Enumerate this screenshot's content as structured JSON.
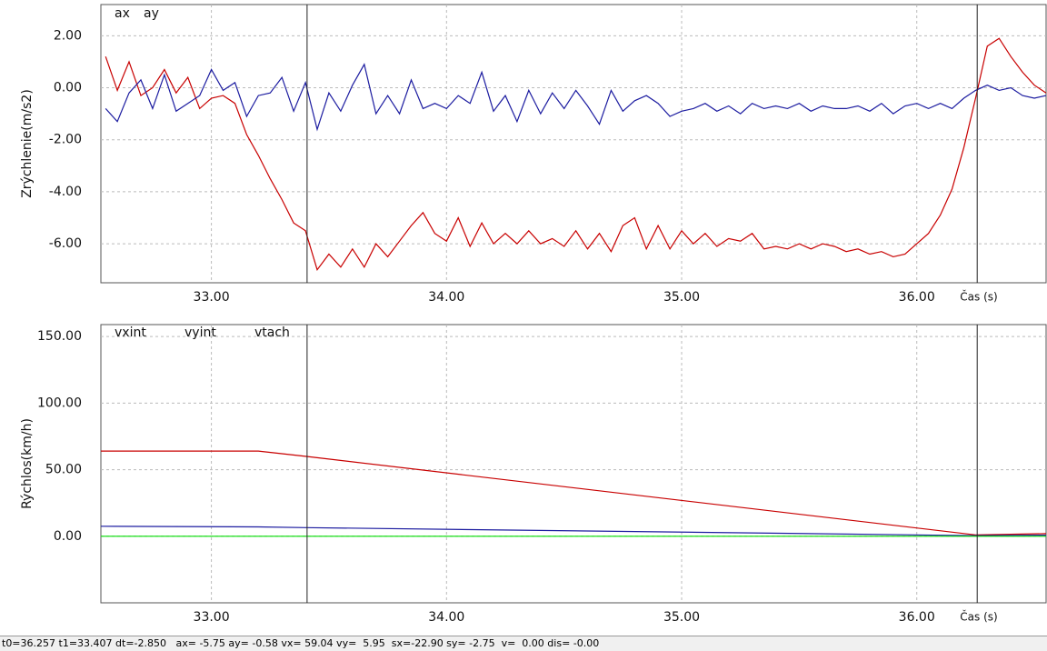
{
  "chart_data": [
    {
      "type": "line",
      "ylabel": "Zrýchlenie(m/s2)",
      "xlabel": "Čas (s)",
      "xlim": [
        32.53,
        36.55
      ],
      "ylim": [
        -7.5,
        3.2
      ],
      "xticks": [
        {
          "value": 33,
          "label": "33.00"
        },
        {
          "value": 34,
          "label": "34.00"
        },
        {
          "value": 35,
          "label": "35.00"
        },
        {
          "value": 36,
          "label": "36.00"
        }
      ],
      "yticks": [
        {
          "value": 2,
          "label": "2.00"
        },
        {
          "value": 0,
          "label": "0.00"
        },
        {
          "value": -2,
          "label": "-2.00"
        },
        {
          "value": -4,
          "label": "-4.00"
        },
        {
          "value": -6,
          "label": "-6.00"
        }
      ],
      "grid": true,
      "cursors": [
        33.407,
        36.257
      ],
      "x": [
        32.55,
        32.6,
        32.65,
        32.7,
        32.75,
        32.8,
        32.85,
        32.9,
        32.95,
        33.0,
        33.05,
        33.1,
        33.15,
        33.2,
        33.25,
        33.3,
        33.35,
        33.4,
        33.45,
        33.5,
        33.55,
        33.6,
        33.65,
        33.7,
        33.75,
        33.8,
        33.85,
        33.9,
        33.95,
        34.0,
        34.05,
        34.1,
        34.15,
        34.2,
        34.25,
        34.3,
        34.35,
        34.4,
        34.45,
        34.5,
        34.55,
        34.6,
        34.65,
        34.7,
        34.75,
        34.8,
        34.85,
        34.9,
        34.95,
        35.0,
        35.05,
        35.1,
        35.15,
        35.2,
        35.25,
        35.3,
        35.35,
        35.4,
        35.45,
        35.5,
        35.55,
        35.6,
        35.65,
        35.7,
        35.75,
        35.8,
        35.85,
        35.9,
        35.95,
        36.0,
        36.05,
        36.1,
        36.15,
        36.2,
        36.25,
        36.3,
        36.35,
        36.4,
        36.45,
        36.5,
        36.55
      ],
      "series": [
        {
          "name": "ax",
          "color": "#c80000",
          "values": [
            1.2,
            -0.1,
            1.0,
            -0.3,
            0.0,
            0.7,
            -0.2,
            0.4,
            -0.8,
            -0.4,
            -0.3,
            -0.6,
            -1.8,
            -2.6,
            -3.5,
            -4.3,
            -5.2,
            -5.5,
            -7.0,
            -6.4,
            -6.9,
            -6.2,
            -6.9,
            -6.0,
            -6.5,
            -5.9,
            -5.3,
            -4.8,
            -5.6,
            -5.9,
            -5.0,
            -6.1,
            -5.2,
            -6.0,
            -5.6,
            -6.0,
            -5.5,
            -6.0,
            -5.8,
            -6.1,
            -5.5,
            -6.2,
            -5.6,
            -6.3,
            -5.3,
            -5.0,
            -6.2,
            -5.3,
            -6.2,
            -5.5,
            -6.0,
            -5.6,
            -6.1,
            -5.8,
            -5.9,
            -5.6,
            -6.2,
            -6.1,
            -6.2,
            -6.0,
            -6.2,
            -6.0,
            -6.1,
            -6.3,
            -6.2,
            -6.4,
            -6.3,
            -6.5,
            -6.4,
            -6.0,
            -5.6,
            -4.9,
            -3.9,
            -2.3,
            -0.4,
            1.6,
            1.9,
            1.2,
            0.6,
            0.1,
            -0.2
          ]
        },
        {
          "name": "ay",
          "color": "#1c1ca0",
          "values": [
            -0.8,
            -1.3,
            -0.2,
            0.3,
            -0.8,
            0.5,
            -0.9,
            -0.6,
            -0.3,
            0.7,
            -0.1,
            0.2,
            -1.1,
            -0.3,
            -0.2,
            0.4,
            -0.9,
            0.2,
            -1.6,
            -0.2,
            -0.9,
            0.1,
            0.9,
            -1.0,
            -0.3,
            -1.0,
            0.3,
            -0.8,
            -0.6,
            -0.8,
            -0.3,
            -0.6,
            0.6,
            -0.9,
            -0.3,
            -1.3,
            -0.1,
            -1.0,
            -0.2,
            -0.8,
            -0.1,
            -0.7,
            -1.4,
            -0.1,
            -0.9,
            -0.5,
            -0.3,
            -0.6,
            -1.1,
            -0.9,
            -0.8,
            -0.6,
            -0.9,
            -0.7,
            -1.0,
            -0.6,
            -0.8,
            -0.7,
            -0.8,
            -0.6,
            -0.9,
            -0.7,
            -0.8,
            -0.8,
            -0.7,
            -0.9,
            -0.6,
            -1.0,
            -0.7,
            -0.6,
            -0.8,
            -0.6,
            -0.8,
            -0.4,
            -0.1,
            0.1,
            -0.1,
            0.0,
            -0.3,
            -0.4,
            -0.3
          ]
        }
      ]
    },
    {
      "type": "line",
      "ylabel": "Rýchlos(km/h)",
      "xlabel": "Čas (s)",
      "xlim": [
        32.53,
        36.55
      ],
      "ylim": [
        -50,
        159
      ],
      "xticks": [
        {
          "value": 33,
          "label": "33.00"
        },
        {
          "value": 34,
          "label": "34.00"
        },
        {
          "value": 35,
          "label": "35.00"
        },
        {
          "value": 36,
          "label": "36.00"
        }
      ],
      "yticks": [
        {
          "value": 150,
          "label": "150.00"
        },
        {
          "value": 100,
          "label": "100.00"
        },
        {
          "value": 50,
          "label": "50.00"
        },
        {
          "value": 0,
          "label": "0.00"
        }
      ],
      "grid": true,
      "cursors": [
        33.407,
        36.257
      ],
      "x": [
        32.53,
        33.2,
        33.4,
        36.25,
        36.55
      ],
      "series": [
        {
          "name": "vxint",
          "color": "#c80000",
          "values": [
            64,
            64,
            60,
            1,
            2
          ]
        },
        {
          "name": "vyint",
          "color": "#1c1ca0",
          "values": [
            7.5,
            7,
            6.5,
            0.5,
            0.8
          ]
        },
        {
          "name": "vtach",
          "color": "#00dd00",
          "values": [
            0,
            0,
            0,
            0,
            0
          ]
        }
      ]
    }
  ],
  "status_bar": "t0=36.257 t1=33.407 dt=-2.850   ax= -5.75 ay= -0.58 vx= 59.04 vy=  5.95  sx=-22.90 sy= -2.75  v=  0.00 dis= -0.00"
}
